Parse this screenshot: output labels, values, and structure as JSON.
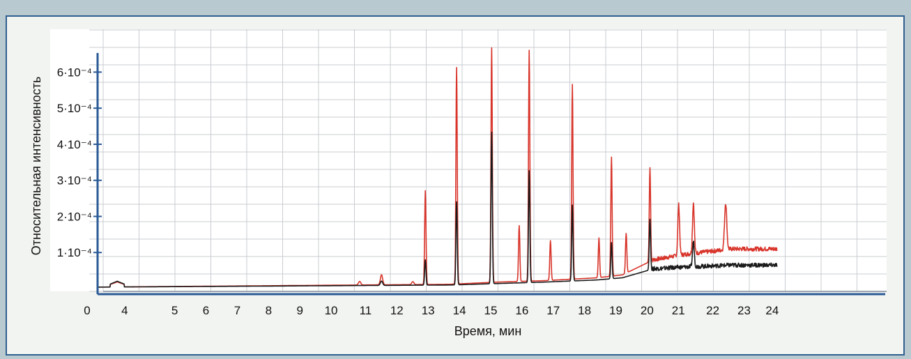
{
  "chart_data": {
    "type": "line",
    "xlabel": "Время, мин",
    "ylabel": "Относительная интенсивность",
    "xlim": [
      0,
      25
    ],
    "ylim": [
      0,
      0.00068
    ],
    "x_ticks": [
      {
        "value": 0,
        "label": "0"
      },
      {
        "value": 1.2,
        "label": "4"
      },
      {
        "value": 2.8,
        "label": "5"
      },
      {
        "value": 3.8,
        "label": "6"
      },
      {
        "value": 4.8,
        "label": "7"
      },
      {
        "value": 5.8,
        "label": "8"
      },
      {
        "value": 6.8,
        "label": "9"
      },
      {
        "value": 7.8,
        "label": "10"
      },
      {
        "value": 8.9,
        "label": "11"
      },
      {
        "value": 9.9,
        "label": "12"
      },
      {
        "value": 10.9,
        "label": "13"
      },
      {
        "value": 11.9,
        "label": "14"
      },
      {
        "value": 12.9,
        "label": "15"
      },
      {
        "value": 13.9,
        "label": "16"
      },
      {
        "value": 14.9,
        "label": "17"
      },
      {
        "value": 15.9,
        "label": "18"
      },
      {
        "value": 16.9,
        "label": "19"
      },
      {
        "value": 17.9,
        "label": "20"
      },
      {
        "value": 18.9,
        "label": "21"
      },
      {
        "value": 20.0,
        "label": "22"
      },
      {
        "value": 21.0,
        "label": "23"
      },
      {
        "value": 21.9,
        "label": "24"
      }
    ],
    "y_ticks": [
      {
        "value": 0.0001,
        "label": "1·10⁻⁴"
      },
      {
        "value": 0.0002,
        "label": "2·10⁻⁴"
      },
      {
        "value": 0.0003,
        "label": "3·10⁻⁴"
      },
      {
        "value": 0.0004,
        "label": "4·10⁻⁴"
      },
      {
        "value": 0.0005,
        "label": "5·10⁻⁴"
      },
      {
        "value": 0.0006,
        "label": "6·10⁻⁴"
      }
    ],
    "grid": true,
    "legend": "none",
    "series": [
      {
        "color": "#d8342a",
        "peaks": [
          {
            "x": 0.85,
            "y": 1.4e-05,
            "w": 0.45
          },
          {
            "x": 8.6,
            "y": 1e-05,
            "w": 0.05
          },
          {
            "x": 9.3,
            "y": 2.8e-05,
            "w": 0.05
          },
          {
            "x": 10.3,
            "y": 8e-06,
            "w": 0.05
          },
          {
            "x": 10.7,
            "y": 0.00026,
            "w": 0.03
          },
          {
            "x": 11.7,
            "y": 0.0006,
            "w": 0.03
          },
          {
            "x": 12.82,
            "y": 0.00065,
            "w": 0.03
          },
          {
            "x": 13.7,
            "y": 0.000155,
            "w": 0.03
          },
          {
            "x": 14.02,
            "y": 0.00064,
            "w": 0.03
          },
          {
            "x": 14.7,
            "y": 0.00011,
            "w": 0.03
          },
          {
            "x": 15.4,
            "y": 0.00054,
            "w": 0.03
          },
          {
            "x": 16.25,
            "y": 0.00011,
            "w": 0.03
          },
          {
            "x": 16.65,
            "y": 0.00033,
            "w": 0.03
          },
          {
            "x": 17.12,
            "y": 0.00011,
            "w": 0.03
          },
          {
            "x": 17.88,
            "y": 0.00026,
            "w": 0.03
          },
          {
            "x": 18.8,
            "y": 0.00014,
            "w": 0.04
          },
          {
            "x": 19.27,
            "y": 0.00014,
            "w": 0.04
          },
          {
            "x": 20.3,
            "y": 0.00013,
            "w": 0.05
          }
        ],
        "baseline": [
          {
            "x": 0,
            "y": 4e-06
          },
          {
            "x": 11.5,
            "y": 1.2e-05
          },
          {
            "x": 13.0,
            "y": 1.8e-05
          },
          {
            "x": 14.5,
            "y": 2.2e-05
          },
          {
            "x": 16.2,
            "y": 3e-05
          },
          {
            "x": 17.0,
            "y": 3.8e-05
          },
          {
            "x": 18.0,
            "y": 8e-05
          },
          {
            "x": 19.0,
            "y": 9.5e-05
          },
          {
            "x": 20.5,
            "y": 0.00011
          },
          {
            "x": 21.9,
            "y": 0.00011
          }
        ]
      },
      {
        "color": "#1a1a1a",
        "peaks": [
          {
            "x": 0.85,
            "y": 1.6e-05,
            "w": 0.45
          },
          {
            "x": 9.3,
            "y": 1.2e-05,
            "w": 0.05
          },
          {
            "x": 10.7,
            "y": 7e-05,
            "w": 0.03
          },
          {
            "x": 11.7,
            "y": 0.00023,
            "w": 0.03
          },
          {
            "x": 12.82,
            "y": 0.00042,
            "w": 0.03
          },
          {
            "x": 14.02,
            "y": 0.00031,
            "w": 0.03
          },
          {
            "x": 15.4,
            "y": 0.00021,
            "w": 0.03
          },
          {
            "x": 16.65,
            "y": 0.0001,
            "w": 0.03
          },
          {
            "x": 17.88,
            "y": 0.00014,
            "w": 0.03
          },
          {
            "x": 19.27,
            "y": 7e-05,
            "w": 0.04
          }
        ],
        "baseline": [
          {
            "x": 0,
            "y": 4e-06
          },
          {
            "x": 11.5,
            "y": 1e-05
          },
          {
            "x": 13.0,
            "y": 1.4e-05
          },
          {
            "x": 14.5,
            "y": 1.8e-05
          },
          {
            "x": 16.2,
            "y": 2.4e-05
          },
          {
            "x": 17.0,
            "y": 3e-05
          },
          {
            "x": 18.0,
            "y": 5.5e-05
          },
          {
            "x": 19.0,
            "y": 6e-05
          },
          {
            "x": 20.5,
            "y": 6.5e-05
          },
          {
            "x": 21.9,
            "y": 6.5e-05
          }
        ]
      }
    ]
  }
}
